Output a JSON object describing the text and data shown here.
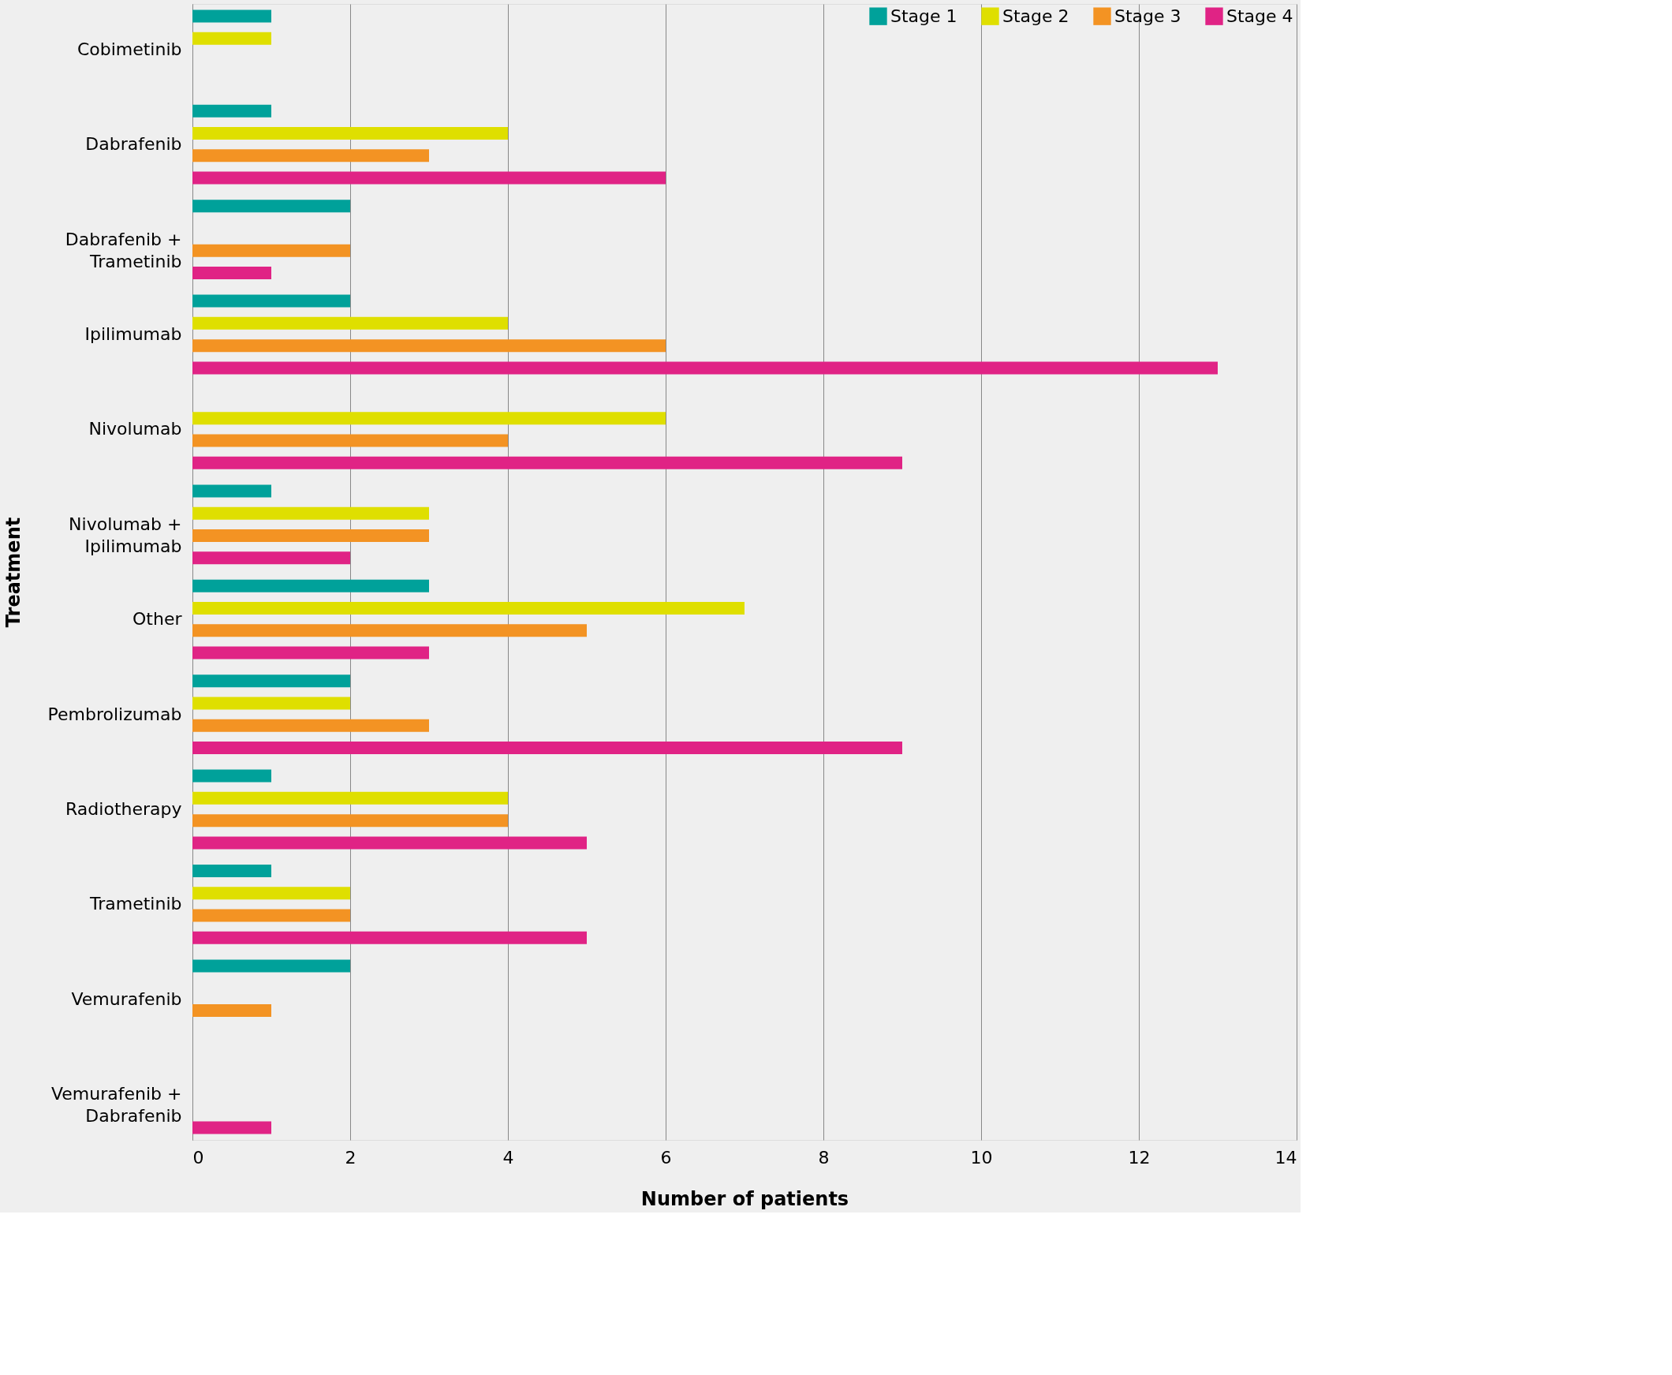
{
  "chart_data": {
    "type": "bar",
    "orientation": "horizontal",
    "xlabel": "Number of patients",
    "ylabel": "Treatment",
    "categories": [
      "Cobimetinib",
      "Dabrafenib",
      "Dabrafenib + Trametinib",
      "Ipilimumab",
      "Nivolumab",
      "Nivolumab + Ipilimumab",
      "Other",
      "Pembrolizumab",
      "Radiotherapy",
      "Trametinib",
      "Vemurafenib",
      "Vemurafenib + Dabrafenib"
    ],
    "series": [
      {
        "name": "Stage 1",
        "color": "#00a19a",
        "values": [
          1,
          1,
          2,
          2,
          null,
          1,
          3,
          2,
          1,
          1,
          2,
          null
        ]
      },
      {
        "name": "Stage 2",
        "color": "#dfdf00",
        "values": [
          1,
          4,
          null,
          4,
          6,
          3,
          7,
          2,
          4,
          2,
          null,
          null
        ]
      },
      {
        "name": "Stage 3",
        "color": "#f39323",
        "values": [
          null,
          3,
          2,
          6,
          4,
          3,
          5,
          3,
          4,
          2,
          1,
          null
        ]
      },
      {
        "name": "Stage 4",
        "color": "#e02385",
        "values": [
          null,
          6,
          1,
          13,
          9,
          2,
          3,
          9,
          5,
          5,
          null,
          1
        ]
      }
    ],
    "xlim": [
      0,
      14
    ],
    "xticks": [
      0,
      2,
      4,
      6,
      8,
      10,
      12,
      14
    ],
    "grid": "x",
    "legend": "top right"
  }
}
